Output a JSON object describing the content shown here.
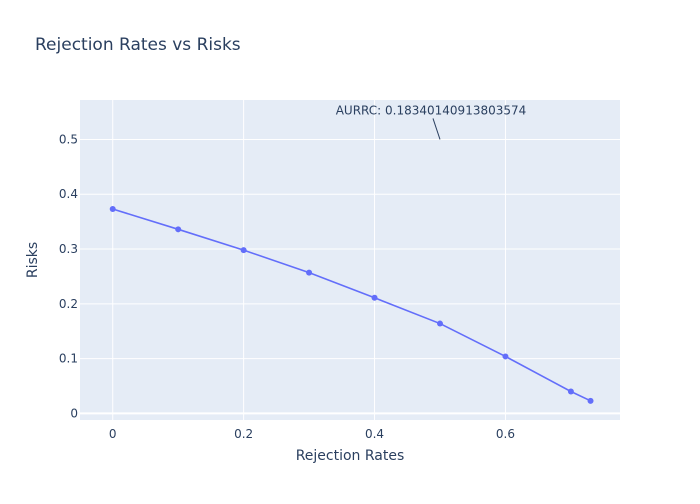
{
  "chart_data": {
    "type": "line",
    "title": "Rejection Rates vs Risks",
    "xlabel": "Rejection Rates",
    "ylabel": "Risks",
    "xlim": [
      -0.05,
      0.775
    ],
    "ylim": [
      -0.012,
      0.572
    ],
    "xticks": [
      0,
      0.2,
      0.4,
      0.6
    ],
    "xtick_labels": [
      "0",
      "0.2",
      "0.4",
      "0.6"
    ],
    "yticks": [
      0,
      0.1,
      0.2,
      0.3,
      0.4,
      0.5
    ],
    "ytick_labels": [
      "0",
      "0.1",
      "0.2",
      "0.3",
      "0.4",
      "0.5"
    ],
    "grid": true,
    "legend": false,
    "series": [
      {
        "x": [
          0,
          0.1,
          0.2,
          0.3,
          0.4,
          0.5,
          0.6,
          0.7,
          0.73
        ],
        "y": [
          0.373,
          0.336,
          0.298,
          0.257,
          0.211,
          0.164,
          0.104,
          0.04,
          0.023
        ]
      }
    ],
    "annotation": {
      "text": "AURRC: 0.18340140913803574",
      "x": 0.5,
      "y": 0.5
    },
    "colors": {
      "plot_bg": "#e5ecf6",
      "grid": "#ffffff",
      "line": "#636efa",
      "text": "#2a3f5f",
      "tick_text": "#2a3f5f"
    }
  }
}
